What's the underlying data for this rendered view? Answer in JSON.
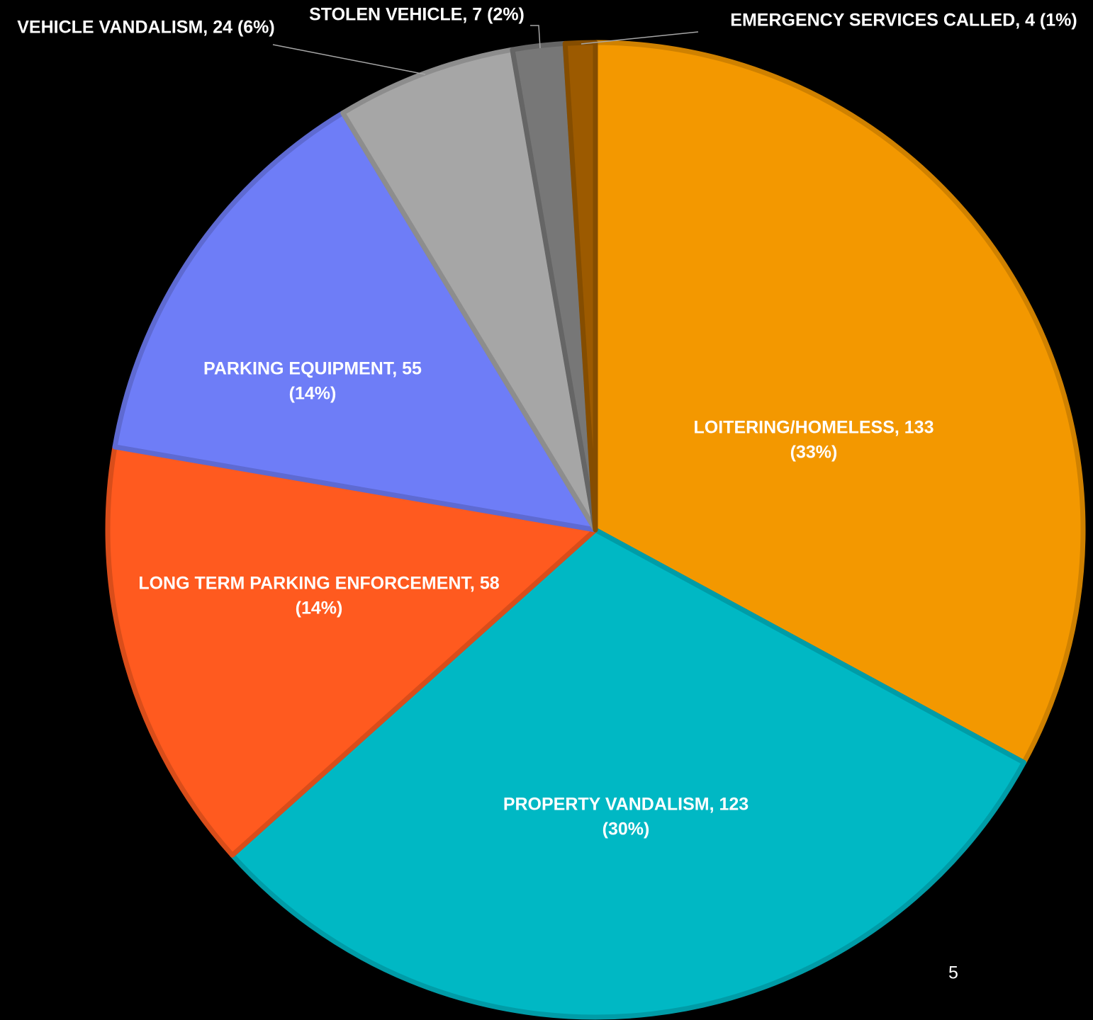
{
  "chart_data": {
    "type": "pie",
    "values": [
      133,
      123,
      58,
      55,
      24,
      7,
      4
    ],
    "labels": [
      [
        "LOITERING/HOMELESS, 133",
        "(33%)"
      ],
      [
        "PROPERTY VANDALISM, 123",
        "(30%)"
      ],
      [
        "LONG TERM PARKING ENFORCEMENT, 58",
        "(14%)"
      ],
      [
        "PARKING EQUIPMENT, 55",
        "(14%)"
      ],
      [
        "VEHICLE VANDALISM, 24 (6%)"
      ],
      [
        "STOLEN VEHICLE, 7 (2%)"
      ],
      [
        "EMERGENCY SERVICES CALLED, 4 (1%)"
      ]
    ],
    "colors": [
      "#f39800",
      "#00b8c4",
      "#ff5a1f",
      "#6e7df7",
      "#a6a6a6",
      "#777777",
      "#9c5a00"
    ]
  },
  "page_number": "5"
}
